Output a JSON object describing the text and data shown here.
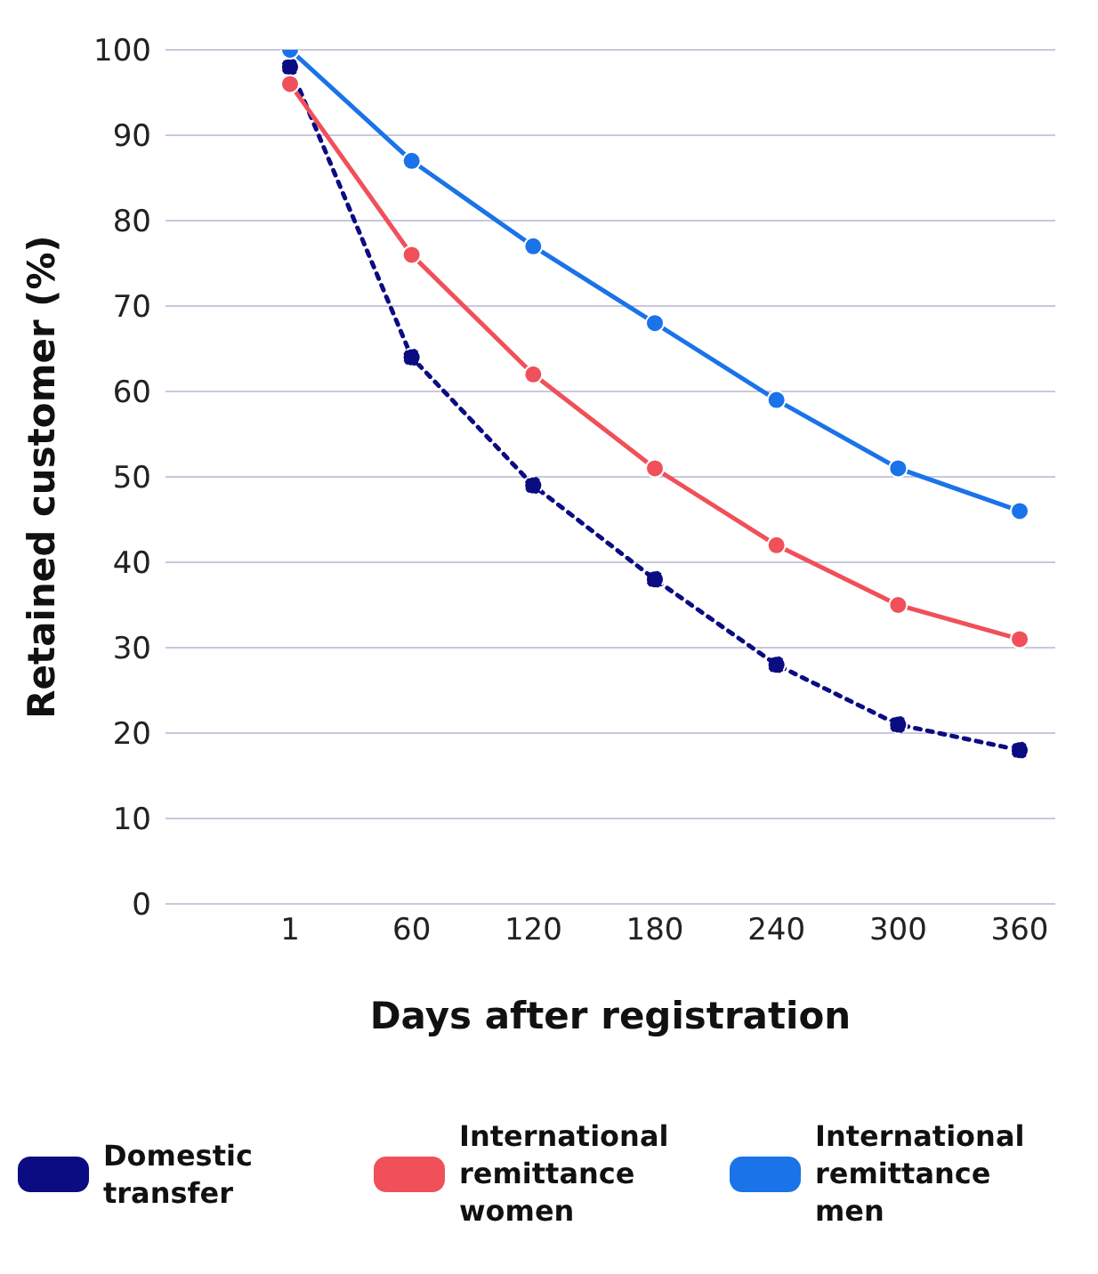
{
  "chart_data": {
    "type": "line",
    "xlabel": "Days after registration",
    "ylabel": "Retained customer (%)",
    "categories": [
      "1",
      "60",
      "120",
      "180",
      "240",
      "300",
      "360"
    ],
    "series": [
      {
        "name": "Domestic transfer",
        "color": "#0b0b82",
        "line_style": "dotted",
        "values": [
          98,
          64,
          49,
          38,
          28,
          21,
          18
        ]
      },
      {
        "name": "International remittance women",
        "color": "#f0505a",
        "line_style": "solid",
        "values": [
          96,
          76,
          62,
          51,
          42,
          35,
          31
        ]
      },
      {
        "name": "International remittance men",
        "color": "#1a73e8",
        "line_style": "solid",
        "values": [
          100,
          87,
          77,
          68,
          59,
          51,
          46
        ]
      }
    ],
    "ylim": [
      0,
      100
    ],
    "yticks": [
      0,
      10,
      20,
      30,
      40,
      50,
      60,
      70,
      80,
      90,
      100
    ],
    "grid": "y",
    "legend": "bottom",
    "marker": "circle"
  }
}
